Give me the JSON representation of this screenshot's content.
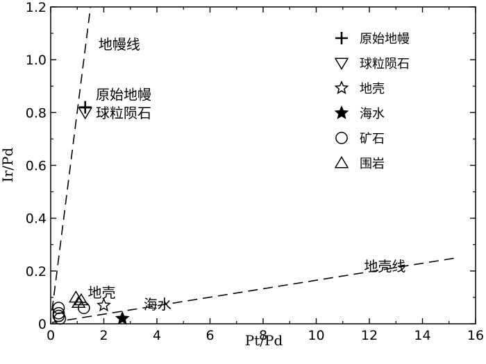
{
  "chart_data": {
    "type": "scatter",
    "xlabel": "Pt/Pd",
    "ylabel": "Ir/Pd",
    "xlim": [
      0,
      16
    ],
    "ylim": [
      0,
      1.2
    ],
    "xticks": [
      0,
      2,
      4,
      6,
      8,
      10,
      12,
      14,
      16
    ],
    "yticks": [
      0,
      0.2,
      0.4,
      0.6,
      0.8,
      1.0,
      1.2
    ],
    "xtick_labels": [
      "0",
      "2",
      "4",
      "6",
      "8",
      "10",
      "12",
      "14",
      "16"
    ],
    "ytick_labels": [
      "0",
      "0.2",
      "0.4",
      "0.6",
      "0.8",
      "1.0",
      "1.2"
    ],
    "grid": false,
    "legend_position": "top-right",
    "series": [
      {
        "name": "原始地幔",
        "marker": "plus",
        "points": [
          [
            1.3,
            0.82
          ]
        ]
      },
      {
        "name": "球粒陨石",
        "marker": "triangle-down",
        "points": [
          [
            1.3,
            0.8
          ]
        ]
      },
      {
        "name": "地壳",
        "marker": "star-open",
        "points": [
          [
            2.0,
            0.07
          ]
        ]
      },
      {
        "name": "海水",
        "marker": "star-filled",
        "points": [
          [
            2.7,
            0.02
          ]
        ]
      },
      {
        "name": "矿石",
        "marker": "circle",
        "points": [
          [
            0.3,
            0.06
          ],
          [
            0.3,
            0.04
          ],
          [
            0.3,
            0.03
          ],
          [
            0.35,
            0.02
          ],
          [
            1.25,
            0.06
          ]
        ]
      },
      {
        "name": "围岩",
        "marker": "triangle-up",
        "points": [
          [
            0.95,
            0.1
          ],
          [
            1.15,
            0.09
          ],
          [
            1.05,
            0.08
          ]
        ]
      }
    ],
    "reference_lines": [
      {
        "label": "地幔线",
        "from": [
          0.05,
          0.05
        ],
        "to": [
          1.5,
          1.2
        ]
      },
      {
        "label": "地壳线",
        "from": [
          0.05,
          0.005
        ],
        "to": [
          15.3,
          0.25
        ]
      }
    ],
    "annotations": [
      {
        "text": "地幔线",
        "x": 1.8,
        "y": 1.04
      },
      {
        "text": "原始地幔",
        "x": 1.7,
        "y": 0.85
      },
      {
        "text": "球粒陨石",
        "x": 1.7,
        "y": 0.78
      },
      {
        "text": "地壳线",
        "x": 11.8,
        "y": 0.2
      },
      {
        "text": "地壳",
        "x": 1.4,
        "y": 0.1
      },
      {
        "text": "海水",
        "x": 3.5,
        "y": 0.055
      }
    ]
  }
}
